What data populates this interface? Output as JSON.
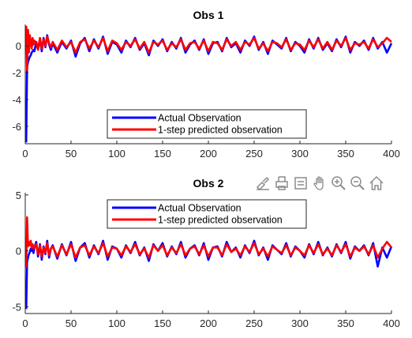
{
  "figure": {
    "background": "#ffffff",
    "axes_color": "#262626"
  },
  "toolbar": {
    "icons": [
      "brush-icon",
      "export-icon",
      "datatip-icon",
      "pan-icon",
      "zoom-in-icon",
      "zoom-out-icon",
      "home-icon"
    ],
    "icon_color": "#8c8c8c"
  },
  "chart_data": [
    {
      "type": "line",
      "title": "Obs 1",
      "xlabel": "",
      "ylabel": "",
      "xlim": [
        0,
        400
      ],
      "ylim": [
        -7.3,
        1.6
      ],
      "xticks": [
        0,
        50,
        100,
        150,
        200,
        250,
        300,
        350,
        400
      ],
      "yticks": [
        0,
        -2,
        -4,
        -6
      ],
      "grid": false,
      "legend_position": "bottom-center",
      "series": [
        {
          "name": "Actual Observation",
          "color": "#0000ff",
          "x": [
            1,
            2,
            3,
            4,
            5,
            6,
            7,
            8,
            9,
            10,
            12,
            14,
            16,
            18,
            20,
            22,
            24,
            26,
            28,
            30,
            35,
            40,
            45,
            50,
            55,
            60,
            65,
            70,
            75,
            80,
            85,
            90,
            95,
            100,
            105,
            110,
            115,
            120,
            125,
            130,
            135,
            140,
            145,
            150,
            155,
            160,
            165,
            170,
            175,
            180,
            185,
            190,
            195,
            200,
            205,
            210,
            215,
            220,
            225,
            230,
            235,
            240,
            245,
            250,
            255,
            260,
            265,
            270,
            275,
            280,
            285,
            290,
            295,
            300,
            305,
            310,
            315,
            320,
            325,
            330,
            335,
            340,
            345,
            350,
            355,
            360,
            365,
            370,
            375,
            380,
            385,
            390,
            395,
            400
          ],
          "values": [
            -7.2,
            -1.6,
            -1.2,
            -1.0,
            -0.8,
            -0.7,
            -0.5,
            -0.4,
            -0.3,
            -0.4,
            0.3,
            -0.2,
            0.5,
            -0.4,
            0.6,
            -0.1,
            0.8,
            0.1,
            -0.3,
            0.2,
            -0.5,
            0.3,
            -0.2,
            0.4,
            -0.8,
            0.2,
            0.6,
            -0.4,
            0.5,
            -0.2,
            0.7,
            -0.6,
            0.3,
            0.1,
            -0.5,
            0.4,
            -0.1,
            0.6,
            -0.3,
            0.2,
            -0.7,
            0.4,
            0.0,
            0.5,
            -0.4,
            0.3,
            -0.2,
            0.6,
            -0.5,
            0.1,
            0.4,
            -0.3,
            0.5,
            -0.6,
            0.2,
            0.3,
            -0.4,
            0.6,
            -0.1,
            0.2,
            -0.5,
            0.4,
            0.0,
            0.7,
            -0.3,
            0.3,
            -0.6,
            0.4,
            0.1,
            -0.2,
            0.6,
            -0.4,
            0.3,
            0.0,
            -0.5,
            0.5,
            -0.2,
            0.6,
            -0.3,
            0.2,
            -0.4,
            0.5,
            -0.1,
            0.7,
            -0.5,
            0.3,
            0.0,
            0.4,
            -0.3,
            0.6,
            -0.2,
            0.3,
            -0.5,
            0.2
          ]
        },
        {
          "name": "1-step predicted observation",
          "color": "#ff0000",
          "x": [
            1,
            2,
            3,
            4,
            5,
            6,
            7,
            8,
            9,
            10,
            12,
            14,
            16,
            18,
            20,
            22,
            24,
            26,
            28,
            30,
            35,
            40,
            45,
            50,
            55,
            60,
            65,
            70,
            75,
            80,
            85,
            90,
            95,
            100,
            105,
            110,
            115,
            120,
            125,
            130,
            135,
            140,
            145,
            150,
            155,
            160,
            165,
            170,
            175,
            180,
            185,
            190,
            195,
            200,
            205,
            210,
            215,
            220,
            225,
            230,
            235,
            240,
            245,
            250,
            255,
            260,
            265,
            270,
            275,
            280,
            285,
            290,
            295,
            300,
            305,
            310,
            315,
            320,
            325,
            330,
            335,
            340,
            345,
            350,
            355,
            360,
            365,
            370,
            375,
            380,
            385,
            390,
            395,
            400
          ],
          "values": [
            1.5,
            -1.8,
            1.2,
            -0.5,
            0.8,
            0.3,
            -0.2,
            0.6,
            0.1,
            0.4,
            0.2,
            -0.3,
            0.6,
            -0.2,
            0.5,
            0.0,
            0.7,
            0.2,
            -0.1,
            0.3,
            -0.3,
            0.4,
            -0.1,
            0.3,
            -0.5,
            0.3,
            0.5,
            -0.2,
            0.4,
            -0.1,
            0.6,
            -0.4,
            0.4,
            0.2,
            -0.3,
            0.3,
            0.0,
            0.5,
            -0.2,
            0.3,
            -0.5,
            0.3,
            0.1,
            0.4,
            -0.3,
            0.2,
            -0.1,
            0.5,
            -0.3,
            0.2,
            0.3,
            -0.2,
            0.4,
            -0.4,
            0.3,
            0.2,
            -0.3,
            0.5,
            0.0,
            0.3,
            -0.3,
            0.3,
            0.1,
            0.6,
            -0.2,
            0.2,
            -0.4,
            0.3,
            0.2,
            -0.1,
            0.5,
            -0.3,
            0.2,
            0.1,
            -0.3,
            0.4,
            -0.1,
            0.5,
            -0.2,
            0.3,
            -0.3,
            0.4,
            0.0,
            0.6,
            -0.3,
            0.2,
            0.1,
            0.3,
            -0.2,
            0.5,
            -0.1,
            0.2,
            0.6,
            0.3
          ]
        }
      ]
    },
    {
      "type": "line",
      "title": "Obs 2",
      "xlabel": "",
      "ylabel": "",
      "xlim": [
        0,
        400
      ],
      "ylim": [
        -5.6,
        5.2
      ],
      "xticks": [
        0,
        50,
        100,
        150,
        200,
        250,
        300,
        350,
        400
      ],
      "yticks": [
        5,
        0,
        -5
      ],
      "grid": false,
      "legend_position": "top-center",
      "series": [
        {
          "name": "Actual Observation",
          "color": "#0000ff",
          "x": [
            1,
            2,
            3,
            4,
            5,
            6,
            7,
            8,
            9,
            10,
            12,
            14,
            16,
            18,
            20,
            22,
            24,
            26,
            28,
            30,
            35,
            40,
            45,
            50,
            55,
            60,
            65,
            70,
            75,
            80,
            85,
            90,
            95,
            100,
            105,
            110,
            115,
            120,
            125,
            130,
            135,
            140,
            145,
            150,
            155,
            160,
            165,
            170,
            175,
            180,
            185,
            190,
            195,
            200,
            205,
            210,
            215,
            220,
            225,
            230,
            235,
            240,
            245,
            250,
            255,
            260,
            265,
            270,
            275,
            280,
            285,
            290,
            295,
            300,
            305,
            310,
            315,
            320,
            325,
            330,
            335,
            340,
            345,
            350,
            355,
            360,
            365,
            370,
            375,
            380,
            385,
            390,
            395,
            400
          ],
          "values": [
            -5.2,
            -1.0,
            -0.6,
            -0.3,
            -0.1,
            0.2,
            0.0,
            0.4,
            -0.2,
            0.3,
            0.8,
            -0.5,
            0.6,
            -0.8,
            0.4,
            -0.3,
            0.9,
            -0.6,
            0.2,
            0.5,
            -0.7,
            0.6,
            -0.4,
            0.8,
            -0.9,
            0.3,
            0.7,
            -0.6,
            0.5,
            -0.3,
            0.9,
            -0.8,
            0.4,
            0.2,
            -0.6,
            0.5,
            -0.2,
            0.8,
            -0.4,
            0.3,
            -0.9,
            0.6,
            0.0,
            0.7,
            -0.5,
            0.4,
            -0.3,
            0.8,
            -0.6,
            0.2,
            0.5,
            -0.4,
            0.7,
            -0.8,
            0.3,
            0.4,
            -0.5,
            0.8,
            -0.1,
            0.3,
            -0.6,
            0.5,
            -0.2,
            0.9,
            -0.4,
            0.3,
            -0.8,
            0.5,
            0.1,
            -0.3,
            0.7,
            -0.5,
            0.4,
            0.0,
            -0.6,
            0.6,
            -0.3,
            0.8,
            -0.4,
            0.3,
            -0.5,
            0.6,
            -0.2,
            0.8,
            -0.7,
            0.4,
            0.0,
            0.5,
            -0.4,
            0.7,
            -1.4,
            0.3,
            -0.6,
            0.4
          ]
        },
        {
          "name": "1-step predicted observation",
          "color": "#ff0000",
          "x": [
            1,
            2,
            3,
            4,
            5,
            6,
            7,
            8,
            9,
            10,
            12,
            14,
            16,
            18,
            20,
            22,
            24,
            26,
            28,
            30,
            35,
            40,
            45,
            50,
            55,
            60,
            65,
            70,
            75,
            80,
            85,
            90,
            95,
            100,
            105,
            110,
            115,
            120,
            125,
            130,
            135,
            140,
            145,
            150,
            155,
            160,
            165,
            170,
            175,
            180,
            185,
            190,
            195,
            200,
            205,
            210,
            215,
            220,
            225,
            230,
            235,
            240,
            245,
            250,
            255,
            260,
            265,
            270,
            275,
            280,
            285,
            290,
            295,
            300,
            305,
            310,
            315,
            320,
            325,
            330,
            335,
            340,
            345,
            350,
            355,
            360,
            365,
            370,
            375,
            380,
            385,
            390,
            395,
            400
          ],
          "values": [
            -1.5,
            3.0,
            0.4,
            0.8,
            0.5,
            0.9,
            0.3,
            0.6,
            0.2,
            0.4,
            0.6,
            -0.3,
            0.5,
            -0.5,
            0.3,
            -0.2,
            0.7,
            -0.4,
            0.2,
            0.4,
            -0.5,
            0.5,
            -0.3,
            0.6,
            -0.6,
            0.3,
            0.5,
            -0.4,
            0.4,
            -0.2,
            0.7,
            -0.5,
            0.3,
            0.2,
            -0.4,
            0.4,
            -0.1,
            0.6,
            -0.3,
            0.2,
            -0.6,
            0.5,
            0.0,
            0.5,
            -0.4,
            0.3,
            -0.2,
            0.6,
            -0.4,
            0.2,
            0.4,
            -0.3,
            0.5,
            -0.5,
            0.3,
            0.3,
            -0.4,
            0.6,
            -0.1,
            0.2,
            -0.4,
            0.4,
            -0.1,
            0.7,
            -0.3,
            0.2,
            -0.5,
            0.4,
            0.1,
            -0.2,
            0.5,
            -0.4,
            0.3,
            0.0,
            -0.4,
            0.5,
            -0.2,
            0.6,
            -0.3,
            0.2,
            -0.4,
            0.5,
            -0.1,
            0.6,
            -0.5,
            0.3,
            0.0,
            0.4,
            -0.3,
            0.5,
            -0.6,
            0.2,
            0.8,
            0.3
          ]
        }
      ]
    }
  ]
}
